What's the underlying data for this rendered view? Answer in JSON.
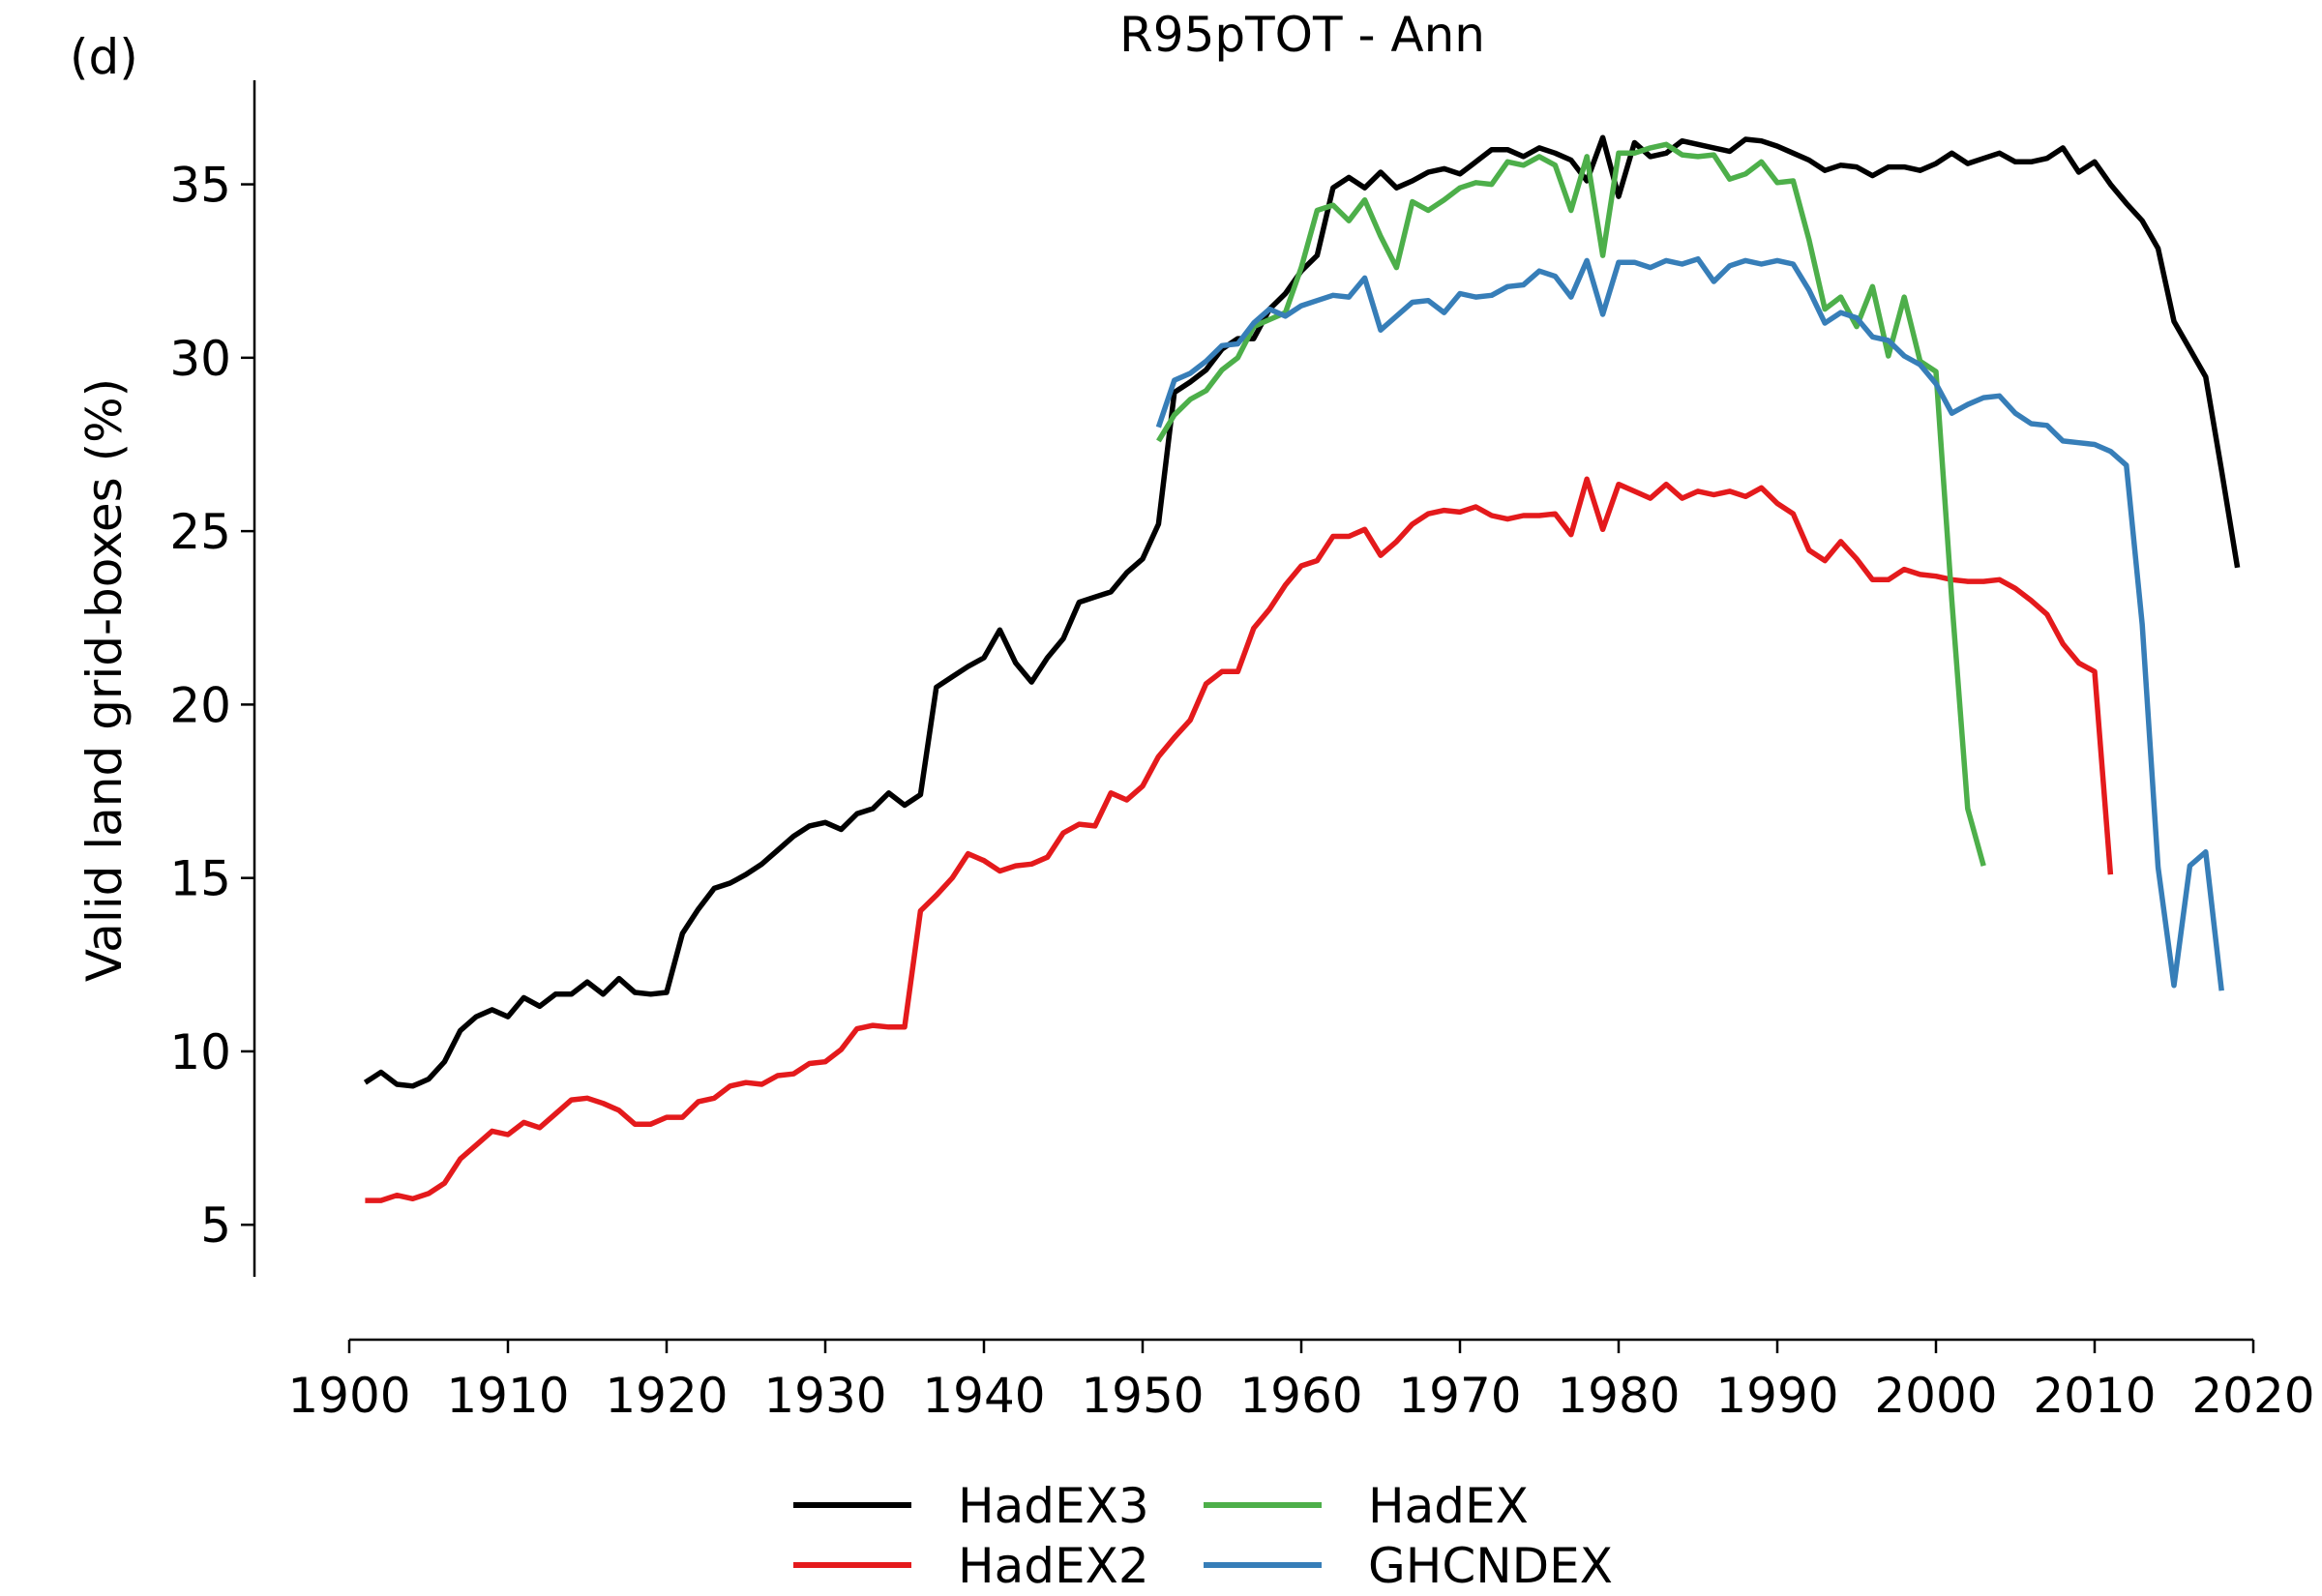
{
  "panel_label": "(d)",
  "chart_data": {
    "type": "line",
    "title": "R95pTOT - Ann",
    "xlabel": "",
    "ylabel": "Valid land grid-boxes (%)",
    "xlim": [
      1900,
      2020
    ],
    "ylim": [
      3.5,
      38
    ],
    "xticks": [
      1900,
      1910,
      1920,
      1930,
      1940,
      1950,
      1960,
      1970,
      1980,
      1990,
      2000,
      2010,
      2020
    ],
    "yticks": [
      5,
      10,
      15,
      20,
      25,
      30,
      35
    ],
    "grid": false,
    "legend_position": "bottom-center",
    "series": [
      {
        "name": "HadEX3",
        "color": "#000000",
        "x_start": 1901,
        "values": [
          9.1,
          9.4,
          9.05,
          9.0,
          9.2,
          9.7,
          10.6,
          11.0,
          11.2,
          11.0,
          11.55,
          11.3,
          11.65,
          11.65,
          12.0,
          11.65,
          12.1,
          11.7,
          11.65,
          11.7,
          13.4,
          14.1,
          14.7,
          14.85,
          15.1,
          15.4,
          15.8,
          16.2,
          16.5,
          16.6,
          16.4,
          16.85,
          17.0,
          17.45,
          17.1,
          17.4,
          20.5,
          20.8,
          21.1,
          21.35,
          22.15,
          21.2,
          20.65,
          21.35,
          21.9,
          22.95,
          23.1,
          23.25,
          23.8,
          24.2,
          25.2,
          29.0,
          29.3,
          29.65,
          30.25,
          30.55,
          30.55,
          31.4,
          31.85,
          32.5,
          32.95,
          34.9,
          35.2,
          34.9,
          35.35,
          34.9,
          35.1,
          35.35,
          35.45,
          35.3,
          35.65,
          36.0,
          36.0,
          35.8,
          36.05,
          35.9,
          35.7,
          35.1,
          36.35,
          34.65,
          36.2,
          35.8,
          35.9,
          36.25,
          36.15,
          36.05,
          35.95,
          36.3,
          36.25,
          36.1,
          35.9,
          35.7,
          35.4,
          35.55,
          35.5,
          35.25,
          35.5,
          35.5,
          35.4,
          35.6,
          35.9,
          35.6,
          35.75,
          35.9,
          35.65,
          35.65,
          35.75,
          36.05,
          35.35,
          35.65,
          35.0,
          34.45,
          33.95,
          33.15,
          31.05,
          30.25,
          29.45,
          26.75,
          23.95
        ]
      },
      {
        "name": "HadEX2",
        "color": "#e41a1c",
        "x_start": 1901,
        "values": [
          5.7,
          5.7,
          5.85,
          5.75,
          5.9,
          6.2,
          6.9,
          7.3,
          7.7,
          7.6,
          7.95,
          7.8,
          8.2,
          8.6,
          8.65,
          8.5,
          8.3,
          7.9,
          7.9,
          8.1,
          8.1,
          8.55,
          8.65,
          9.0,
          9.1,
          9.05,
          9.3,
          9.35,
          9.65,
          9.7,
          10.05,
          10.65,
          10.75,
          10.7,
          10.7,
          14.05,
          14.5,
          15.0,
          15.7,
          15.5,
          15.2,
          15.35,
          15.4,
          15.6,
          16.3,
          16.55,
          16.5,
          17.45,
          17.25,
          17.65,
          18.5,
          19.05,
          19.55,
          20.6,
          20.95,
          20.95,
          22.2,
          22.75,
          23.45,
          24.0,
          24.15,
          24.85,
          24.85,
          25.05,
          24.3,
          24.7,
          25.2,
          25.5,
          25.6,
          25.55,
          25.7,
          25.45,
          25.35,
          25.45,
          25.45,
          25.5,
          24.9,
          26.5,
          25.05,
          26.35,
          26.15,
          25.95,
          26.35,
          25.95,
          26.15,
          26.05,
          26.15,
          26.0,
          26.25,
          25.8,
          25.5,
          24.45,
          24.15,
          24.7,
          24.2,
          23.6,
          23.6,
          23.9,
          23.75,
          23.7,
          23.6,
          23.55,
          23.55,
          23.6,
          23.35,
          23.0,
          22.6,
          21.75,
          21.2,
          20.95,
          15.1
        ]
      },
      {
        "name": "HadEX",
        "color": "#4daf4a",
        "x_start": 1951,
        "values": [
          27.6,
          28.35,
          28.8,
          29.05,
          29.65,
          30.0,
          30.9,
          31.1,
          31.3,
          32.6,
          34.25,
          34.4,
          33.95,
          34.55,
          33.5,
          32.6,
          34.5,
          34.25,
          34.55,
          34.9,
          35.05,
          35.0,
          35.65,
          35.55,
          35.8,
          35.55,
          34.25,
          35.8,
          32.95,
          35.9,
          35.9,
          36.05,
          36.15,
          35.85,
          35.8,
          35.85,
          35.15,
          35.3,
          35.65,
          35.05,
          35.1,
          33.4,
          31.4,
          31.75,
          30.9,
          32.05,
          30.05,
          31.75,
          29.9,
          29.6,
          23.0,
          17.0,
          15.35
        ]
      },
      {
        "name": "GHCNDEX",
        "color": "#377eb8",
        "x_start": 1951,
        "values": [
          28.0,
          29.35,
          29.55,
          29.9,
          30.35,
          30.4,
          31.0,
          31.4,
          31.2,
          31.5,
          31.65,
          31.8,
          31.75,
          32.3,
          30.8,
          31.2,
          31.6,
          31.65,
          31.3,
          31.85,
          31.75,
          31.8,
          32.05,
          32.1,
          32.5,
          32.35,
          31.75,
          32.8,
          31.25,
          32.75,
          32.75,
          32.6,
          32.8,
          32.7,
          32.85,
          32.2,
          32.65,
          32.8,
          32.7,
          32.8,
          32.7,
          31.95,
          31.0,
          31.3,
          31.15,
          30.6,
          30.5,
          30.05,
          29.8,
          29.25,
          28.4,
          28.65,
          28.85,
          28.9,
          28.4,
          28.1,
          28.05,
          27.6,
          27.55,
          27.5,
          27.3,
          26.9,
          22.3,
          15.3,
          11.9,
          15.35,
          15.75,
          11.75
        ]
      }
    ]
  }
}
